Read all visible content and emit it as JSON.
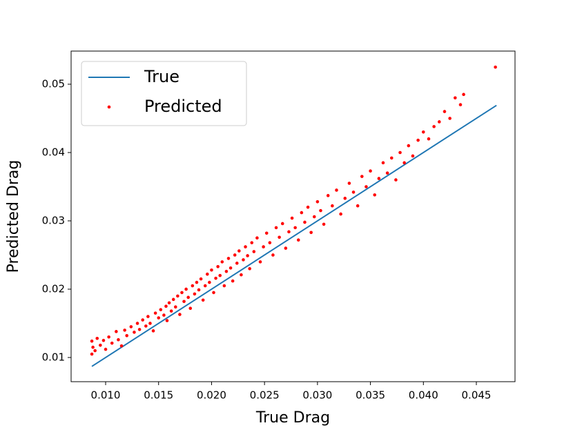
{
  "chart_data": {
    "type": "scatter",
    "xlabel": "True Drag",
    "ylabel": "Predicted Drag",
    "xlim": [
      0.00674,
      0.04865
    ],
    "ylim": [
      0.00646,
      0.05485
    ],
    "xticks": [
      {
        "value": 0.01,
        "label": "0.010"
      },
      0.015,
      {
        "value": 0.02,
        "label": "0.020"
      },
      0.025,
      {
        "value": 0.03,
        "label": "0.030"
      },
      0.035,
      {
        "value": 0.04,
        "label": "0.040"
      },
      0.045
    ],
    "yticks": [
      0.01,
      0.02,
      0.03,
      0.04,
      0.05
    ],
    "legend": "upper left",
    "series": [
      {
        "name": "True",
        "type": "line",
        "color": "#1f77b4",
        "x": [
          0.0087,
          0.0469
        ],
        "y": [
          0.0087,
          0.0469
        ]
      },
      {
        "name": "Predicted",
        "type": "scatter",
        "color": "#ff0000",
        "x": [
          0.0087,
          0.0087,
          0.0088,
          0.009,
          0.0092,
          0.0095,
          0.0098,
          0.01,
          0.0103,
          0.0106,
          0.011,
          0.0112,
          0.0115,
          0.0118,
          0.012,
          0.0124,
          0.0127,
          0.013,
          0.0132,
          0.0135,
          0.0138,
          0.014,
          0.0142,
          0.0145,
          0.0147,
          0.015,
          0.0152,
          0.0155,
          0.0157,
          0.0158,
          0.016,
          0.0162,
          0.0164,
          0.0166,
          0.0168,
          0.017,
          0.0172,
          0.0174,
          0.0176,
          0.0178,
          0.018,
          0.0182,
          0.0184,
          0.0186,
          0.0188,
          0.019,
          0.0192,
          0.0194,
          0.0196,
          0.0198,
          0.02,
          0.0202,
          0.0204,
          0.0206,
          0.0208,
          0.021,
          0.0212,
          0.0214,
          0.0216,
          0.0218,
          0.022,
          0.0222,
          0.0224,
          0.0226,
          0.0228,
          0.023,
          0.0232,
          0.0234,
          0.0236,
          0.0238,
          0.024,
          0.0243,
          0.0246,
          0.0249,
          0.0252,
          0.0255,
          0.0258,
          0.0261,
          0.0264,
          0.0267,
          0.027,
          0.0273,
          0.0276,
          0.0279,
          0.0282,
          0.0285,
          0.0288,
          0.0291,
          0.0294,
          0.0297,
          0.03,
          0.0303,
          0.0306,
          0.031,
          0.0314,
          0.0318,
          0.0322,
          0.0326,
          0.033,
          0.0334,
          0.0338,
          0.0342,
          0.0346,
          0.035,
          0.0354,
          0.0358,
          0.0362,
          0.0366,
          0.037,
          0.0374,
          0.0378,
          0.0382,
          0.0386,
          0.039,
          0.0395,
          0.04,
          0.0405,
          0.041,
          0.0415,
          0.042,
          0.0425,
          0.043,
          0.0435,
          0.0438,
          0.0468
        ],
        "y": [
          0.0105,
          0.0124,
          0.0115,
          0.011,
          0.0128,
          0.0118,
          0.0125,
          0.0112,
          0.013,
          0.0121,
          0.0138,
          0.0126,
          0.0117,
          0.014,
          0.0132,
          0.0145,
          0.0137,
          0.015,
          0.0141,
          0.0155,
          0.0146,
          0.016,
          0.015,
          0.0139,
          0.0165,
          0.0158,
          0.017,
          0.0162,
          0.0175,
          0.0154,
          0.018,
          0.0168,
          0.0185,
          0.0174,
          0.019,
          0.0163,
          0.0195,
          0.0182,
          0.02,
          0.0188,
          0.0172,
          0.0205,
          0.0193,
          0.021,
          0.0199,
          0.0215,
          0.0184,
          0.0205,
          0.0222,
          0.021,
          0.0228,
          0.0195,
          0.0216,
          0.0233,
          0.022,
          0.024,
          0.0205,
          0.0226,
          0.0245,
          0.0231,
          0.0212,
          0.025,
          0.0238,
          0.0256,
          0.0221,
          0.0243,
          0.0262,
          0.0249,
          0.023,
          0.0268,
          0.0255,
          0.0275,
          0.024,
          0.0262,
          0.0282,
          0.0268,
          0.025,
          0.029,
          0.0276,
          0.0296,
          0.026,
          0.0284,
          0.0304,
          0.029,
          0.0272,
          0.0312,
          0.0298,
          0.032,
          0.0283,
          0.0306,
          0.0328,
          0.0315,
          0.0295,
          0.0337,
          0.0322,
          0.0345,
          0.031,
          0.0333,
          0.0355,
          0.0342,
          0.0322,
          0.0365,
          0.035,
          0.0373,
          0.0338,
          0.0362,
          0.0385,
          0.037,
          0.0392,
          0.036,
          0.04,
          0.0385,
          0.041,
          0.0395,
          0.0418,
          0.043,
          0.042,
          0.0438,
          0.0445,
          0.046,
          0.045,
          0.048,
          0.047,
          0.0485,
          0.0525
        ]
      }
    ]
  }
}
